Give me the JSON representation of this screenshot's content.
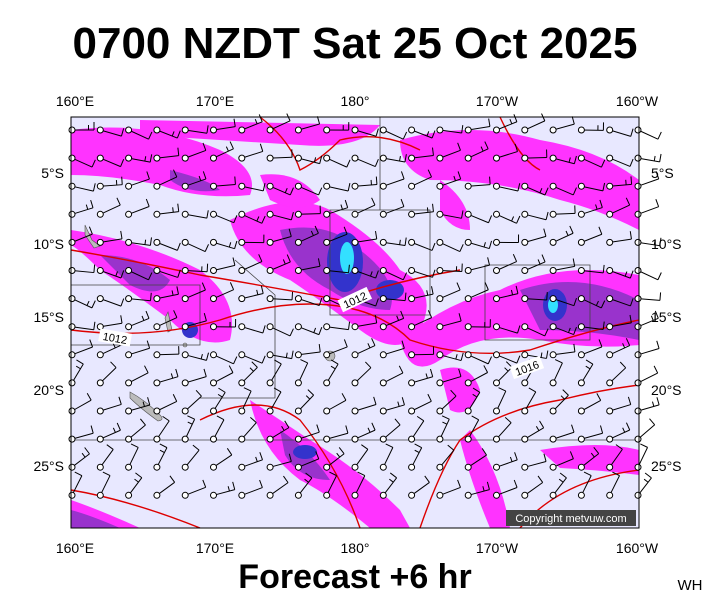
{
  "title": "0700 NZDT Sat 25 Oct 2025",
  "map": {
    "top_labels": [
      "160°E",
      "170°E",
      "180°",
      "170°W",
      "160°W"
    ],
    "bottom_labels": [
      "160°E",
      "170°E",
      "180°",
      "170°W",
      "160°W"
    ],
    "left_labels": [
      "5°S",
      "10°S",
      "15°S",
      "20°S",
      "25°S"
    ],
    "right_labels": [
      "5°S",
      "10°S",
      "15°S",
      "20°S",
      "25°S"
    ],
    "isobar_labels": [
      "1012",
      "1012",
      "1016"
    ],
    "copyright": "Copyright metvuw.com"
  },
  "footer": {
    "forecast": "Forecast +6 hr",
    "credit": "WH"
  }
}
